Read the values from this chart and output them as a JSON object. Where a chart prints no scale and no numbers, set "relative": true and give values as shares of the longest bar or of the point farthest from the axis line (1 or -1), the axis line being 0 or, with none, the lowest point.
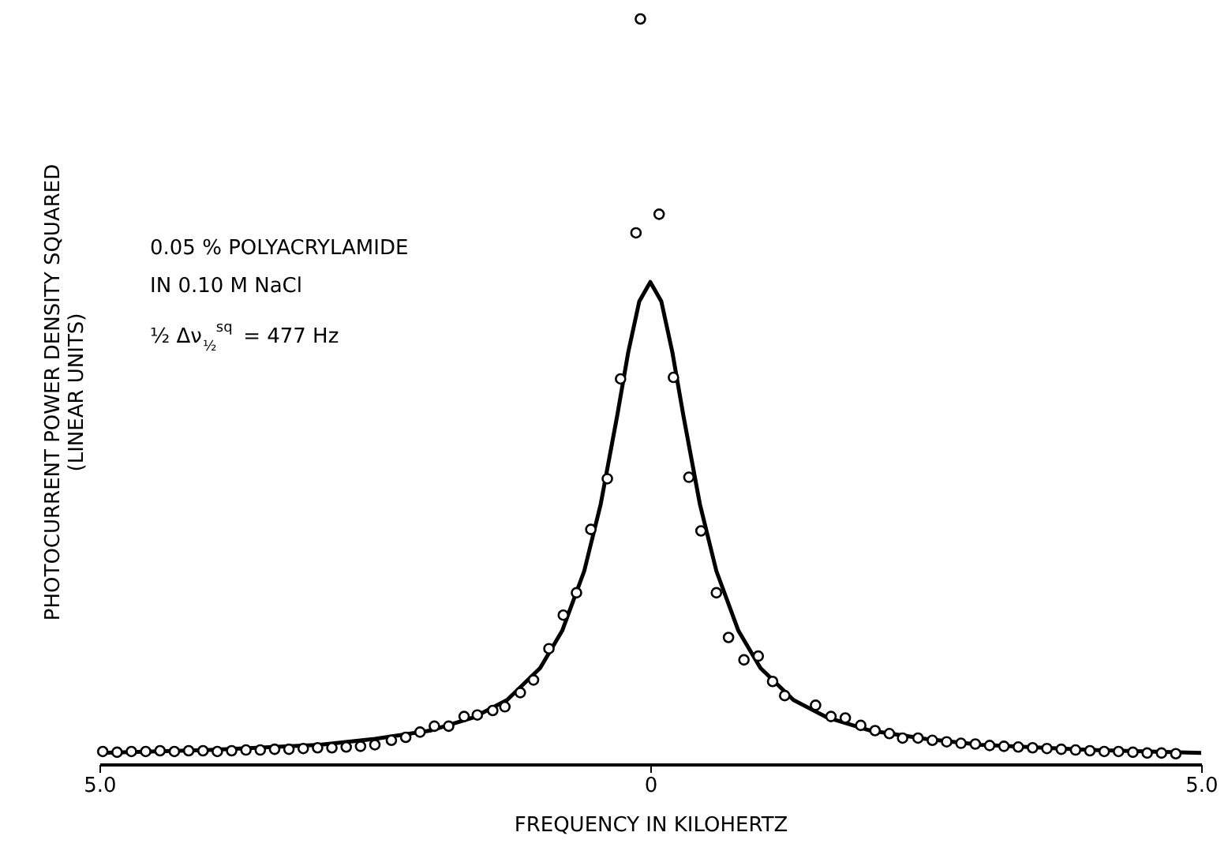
{
  "chart_data": {
    "type": "scatter",
    "relative": true,
    "xlabel": "FREQUENCY IN KILOHERTZ",
    "ylabel": "PHOTOCURRENT POWER DENSITY SQUARED\n(LINEAR UNITS)",
    "xlim": [
      -5.0,
      5.0
    ],
    "xticks": [
      {
        "value": -5.0,
        "label": "5.0"
      },
      {
        "value": 0,
        "label": "0"
      },
      {
        "value": 5.0,
        "label": "5.0"
      }
    ],
    "tick_labels": "x",
    "grid": false,
    "annotations": [
      "0.05 % POLYACRYLAMIDE",
      "IN 0.10 M NaCl",
      "½ Δν$_{½}$$^{sq}$ = 477 Hz"
    ],
    "series": [
      {
        "marker": "circle",
        "color": "#000000",
        "x": [
          -4.97,
          -4.84,
          -4.71,
          -4.58,
          -4.45,
          -4.32,
          -4.19,
          -4.06,
          -3.93,
          -3.8,
          -3.67,
          -3.54,
          -3.41,
          -3.28,
          -3.15,
          -3.02,
          -2.89,
          -2.76,
          -2.63,
          -2.5,
          -2.35,
          -2.22,
          -2.09,
          -1.96,
          -1.83,
          -1.69,
          -1.57,
          -1.43,
          -1.32,
          -1.18,
          -1.06,
          -0.92,
          -0.79,
          -0.67,
          -0.54,
          -0.39,
          -0.27,
          -0.13,
          -0.09,
          0.08,
          0.21,
          0.35,
          0.46,
          0.6,
          0.71,
          0.85,
          0.98,
          1.11,
          1.22,
          1.5,
          1.64,
          1.77,
          1.91,
          2.04,
          2.17,
          2.29,
          2.43,
          2.56,
          2.69,
          2.82,
          2.95,
          3.08,
          3.21,
          3.34,
          3.47,
          3.6,
          3.73,
          3.86,
          3.99,
          4.12,
          4.25,
          4.38,
          4.51,
          4.64,
          4.77
        ],
        "values": [
          0.017,
          0.016,
          0.017,
          0.017,
          0.018,
          0.017,
          0.018,
          0.018,
          0.017,
          0.018,
          0.019,
          0.019,
          0.02,
          0.02,
          0.021,
          0.022,
          0.022,
          0.023,
          0.024,
          0.026,
          0.032,
          0.036,
          0.043,
          0.051,
          0.051,
          0.064,
          0.066,
          0.072,
          0.077,
          0.096,
          0.113,
          0.155,
          0.2,
          0.23,
          0.315,
          0.383,
          0.517,
          0.713,
          1.0,
          0.738,
          0.519,
          0.385,
          0.313,
          0.23,
          0.17,
          0.14,
          0.145,
          0.111,
          0.092,
          0.079,
          0.064,
          0.062,
          0.052,
          0.045,
          0.041,
          0.035,
          0.035,
          0.032,
          0.03,
          0.028,
          0.027,
          0.025,
          0.024,
          0.023,
          0.022,
          0.021,
          0.02,
          0.019,
          0.018,
          0.017,
          0.017,
          0.016,
          0.015,
          0.015,
          0.014
        ]
      },
      {
        "type": "line",
        "marker": "none",
        "color": "#000000",
        "x": [
          -5,
          -4,
          -3,
          -2.5,
          -2,
          -1.6,
          -1.3,
          -1,
          -0.8,
          -0.6,
          -0.45,
          -0.3,
          -0.2,
          -0.1,
          0,
          0.1,
          0.2,
          0.3,
          0.45,
          0.6,
          0.8,
          1,
          1.3,
          1.6,
          2,
          2.5,
          3,
          4,
          5
        ],
        "values": [
          0.015,
          0.019,
          0.026,
          0.034,
          0.045,
          0.063,
          0.086,
          0.129,
          0.179,
          0.259,
          0.349,
          0.468,
          0.553,
          0.621,
          0.647,
          0.621,
          0.553,
          0.468,
          0.349,
          0.259,
          0.179,
          0.129,
          0.086,
          0.063,
          0.045,
          0.034,
          0.026,
          0.019,
          0.015
        ]
      }
    ]
  }
}
